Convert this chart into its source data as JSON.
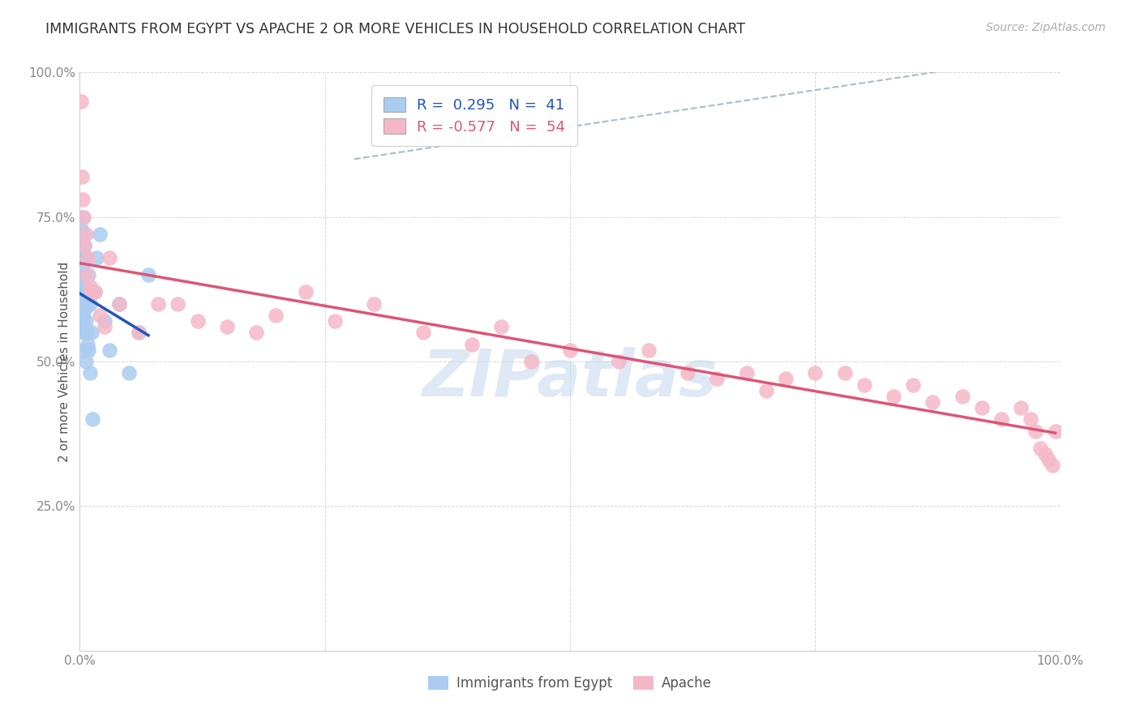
{
  "title": "IMMIGRANTS FROM EGYPT VS APACHE 2 OR MORE VEHICLES IN HOUSEHOLD CORRELATION CHART",
  "source": "Source: ZipAtlas.com",
  "ylabel_label": "2 or more Vehicles in Household",
  "y_ticks": [
    0.0,
    0.25,
    0.5,
    0.75,
    1.0
  ],
  "y_tick_labels_right": [
    "",
    "25.0%",
    "50.0%",
    "75.0%",
    "100.0%"
  ],
  "x_ticks": [
    0.0,
    0.25,
    0.5,
    0.75,
    1.0
  ],
  "x_tick_labels": [
    "0.0%",
    "",
    "",
    "",
    "100.0%"
  ],
  "blue_R": 0.295,
  "blue_N": 41,
  "pink_R": -0.577,
  "pink_N": 54,
  "blue_color": "#aaccf0",
  "pink_color": "#f5b8c8",
  "blue_line_color": "#2255bb",
  "pink_line_color": "#dd5577",
  "watermark": "ZIPatlas",
  "blue_scatter_x": [
    0.0005,
    0.001,
    0.001,
    0.0015,
    0.002,
    0.002,
    0.002,
    0.003,
    0.003,
    0.003,
    0.003,
    0.004,
    0.004,
    0.004,
    0.004,
    0.005,
    0.005,
    0.005,
    0.005,
    0.006,
    0.006,
    0.006,
    0.007,
    0.007,
    0.008,
    0.008,
    0.009,
    0.009,
    0.01,
    0.01,
    0.012,
    0.013,
    0.015,
    0.017,
    0.02,
    0.025,
    0.03,
    0.04,
    0.05,
    0.06,
    0.07
  ],
  "blue_scatter_y": [
    0.56,
    0.62,
    0.73,
    0.68,
    0.57,
    0.63,
    0.7,
    0.58,
    0.64,
    0.69,
    0.75,
    0.55,
    0.61,
    0.67,
    0.72,
    0.52,
    0.59,
    0.65,
    0.7,
    0.5,
    0.57,
    0.63,
    0.55,
    0.68,
    0.53,
    0.6,
    0.52,
    0.65,
    0.48,
    0.6,
    0.55,
    0.4,
    0.62,
    0.68,
    0.72,
    0.57,
    0.52,
    0.6,
    0.48,
    0.55,
    0.65
  ],
  "pink_scatter_x": [
    0.001,
    0.002,
    0.003,
    0.004,
    0.005,
    0.006,
    0.007,
    0.008,
    0.01,
    0.012,
    0.015,
    0.02,
    0.025,
    0.03,
    0.04,
    0.06,
    0.08,
    0.1,
    0.12,
    0.15,
    0.18,
    0.2,
    0.23,
    0.26,
    0.3,
    0.35,
    0.4,
    0.43,
    0.46,
    0.5,
    0.55,
    0.58,
    0.62,
    0.65,
    0.68,
    0.7,
    0.72,
    0.75,
    0.78,
    0.8,
    0.83,
    0.85,
    0.87,
    0.9,
    0.92,
    0.94,
    0.96,
    0.97,
    0.975,
    0.98,
    0.985,
    0.988,
    0.992,
    0.995
  ],
  "pink_scatter_y": [
    0.95,
    0.82,
    0.78,
    0.75,
    0.7,
    0.72,
    0.65,
    0.68,
    0.63,
    0.62,
    0.62,
    0.58,
    0.56,
    0.68,
    0.6,
    0.55,
    0.6,
    0.6,
    0.57,
    0.56,
    0.55,
    0.58,
    0.62,
    0.57,
    0.6,
    0.55,
    0.53,
    0.56,
    0.5,
    0.52,
    0.5,
    0.52,
    0.48,
    0.47,
    0.48,
    0.45,
    0.47,
    0.48,
    0.48,
    0.46,
    0.44,
    0.46,
    0.43,
    0.44,
    0.42,
    0.4,
    0.42,
    0.4,
    0.38,
    0.35,
    0.34,
    0.33,
    0.32,
    0.38
  ],
  "dash_line_x": [
    0.28,
    0.95
  ],
  "dash_line_y": [
    0.85,
    1.02
  ]
}
